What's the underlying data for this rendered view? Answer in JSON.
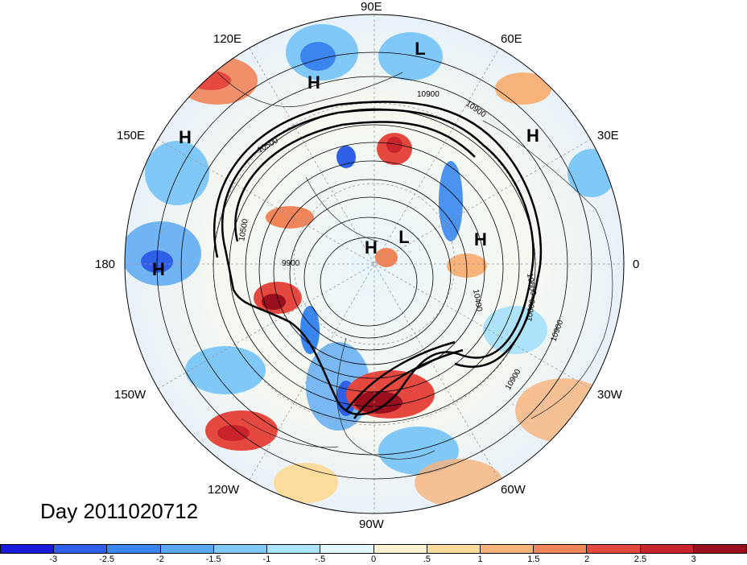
{
  "title": "Day 2011020712",
  "longitude_labels": {
    "top": "90E",
    "upper_right_1": "60E",
    "upper_right_2": "30E",
    "right": "0",
    "lower_right_1": "30W",
    "lower_right_2": "60W",
    "bottom": "90W",
    "lower_left_1": "120W",
    "lower_left_2": "150W",
    "left": "180",
    "upper_left_1": "150E",
    "upper_left_2": "120E"
  },
  "pressure_centers": [
    {
      "label": "H",
      "id": "h-north-asia"
    },
    {
      "label": "L",
      "id": "l-top"
    },
    {
      "label": "H",
      "id": "h-pacific-west"
    },
    {
      "label": "H",
      "id": "h-europe-east"
    },
    {
      "label": "H",
      "id": "h-dateline"
    },
    {
      "label": "H",
      "id": "h-pole"
    },
    {
      "label": "L",
      "id": "l-pole"
    },
    {
      "label": "H",
      "id": "h-atlantic"
    }
  ],
  "contour_labels": [
    "10900",
    "10900",
    "10500",
    "9900",
    "10400",
    "10600",
    "10600",
    "10900",
    "10900",
    "10500"
  ],
  "colorbar": {
    "ticks": [
      "-3",
      "-2.5",
      "-2",
      "-1.5",
      "-1",
      "-.5",
      "0",
      ".5",
      "1",
      "1.5",
      "2",
      "2.5",
      "3"
    ],
    "colors": [
      "#1a1adc",
      "#2f5fe6",
      "#3a86ee",
      "#5aa8f2",
      "#7fc8f8",
      "#aee4fb",
      "#e2f6fd",
      "#fdf3d2",
      "#fbdc9c",
      "#f7b37a",
      "#f0855a",
      "#e5483e",
      "#c9242b",
      "#9a0f1e"
    ]
  }
}
